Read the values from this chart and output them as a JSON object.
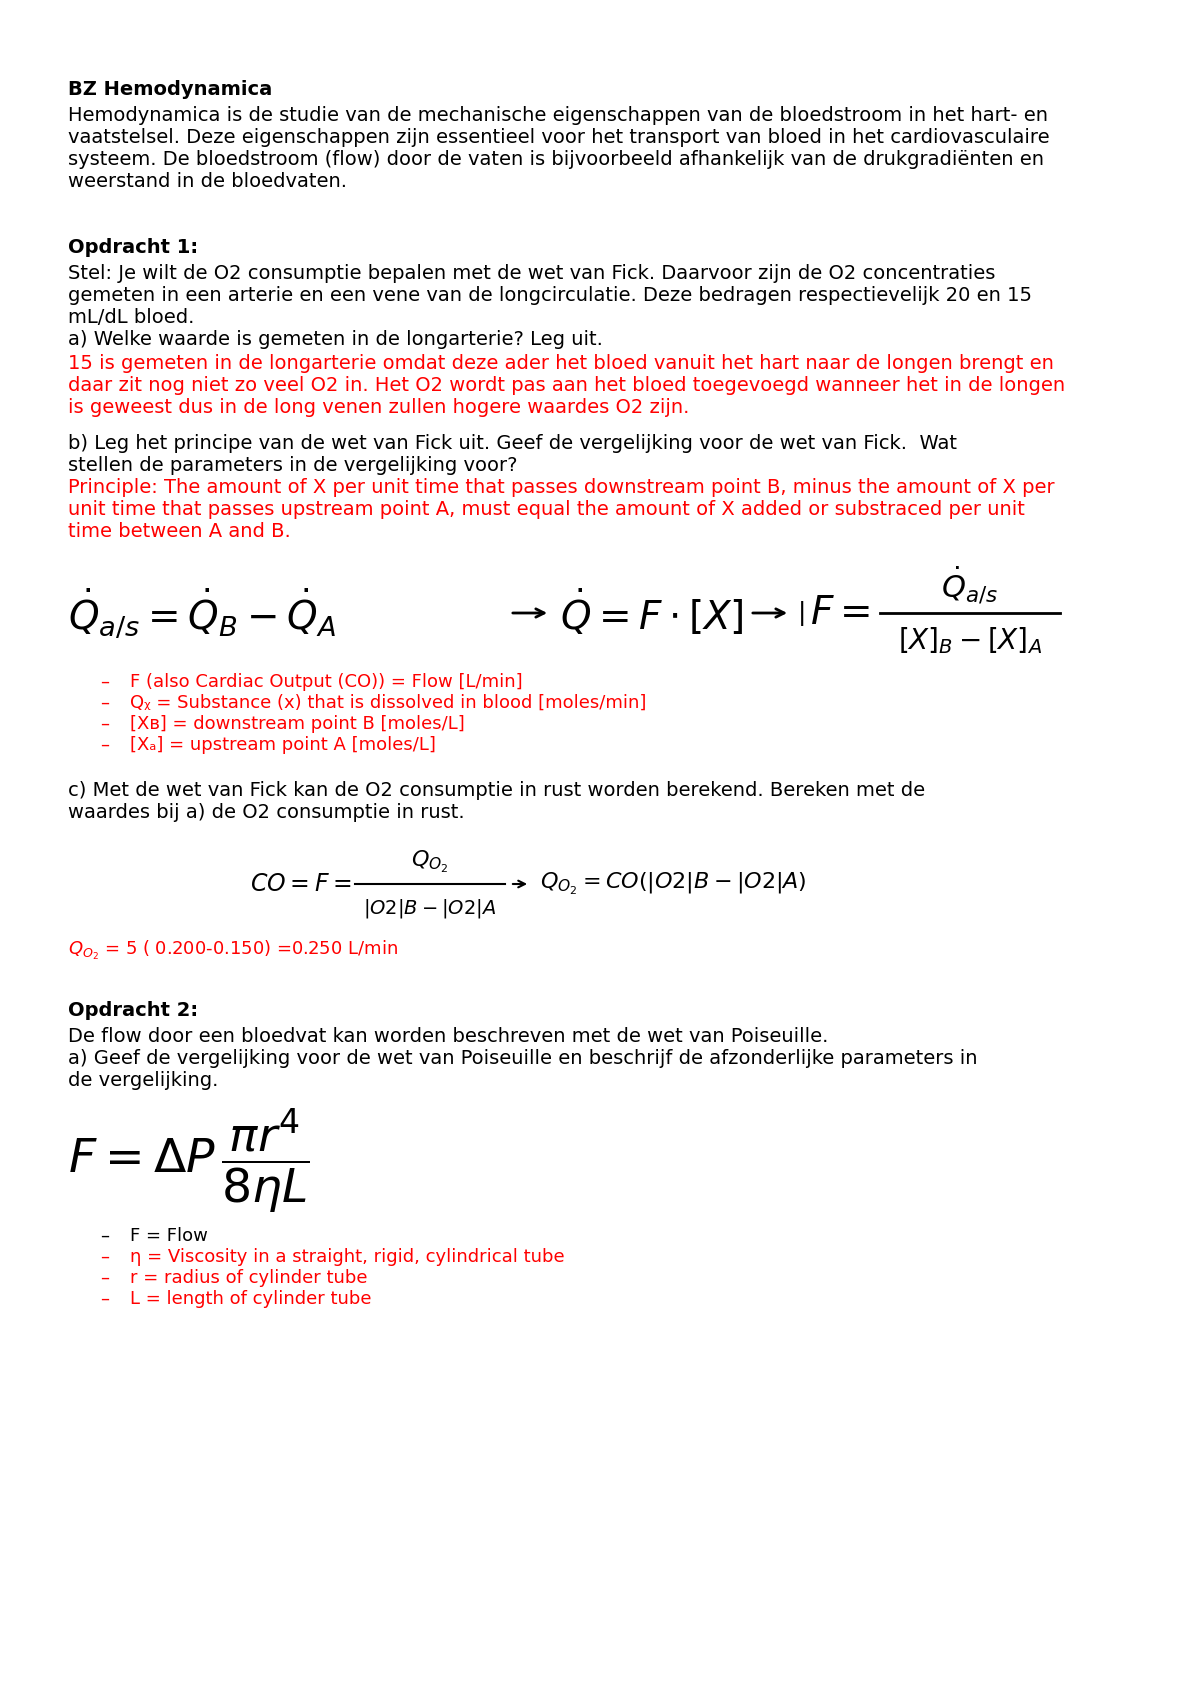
{
  "bg_color": "#ffffff",
  "title": "BZ Hemodynamica",
  "intro_lines": [
    "Hemodynamica is de studie van de mechanische eigenschappen van de bloedstroom in het hart- en",
    "vaatstelsel. Deze eigenschappen zijn essentieel voor het transport van bloed in het cardiovasculaire",
    "systeem. De bloedstroom (flow) door de vaten is bijvoorbeeld afhankelijk van de drukgradiënten en",
    "weerstand in de bloedvaten."
  ],
  "opdracht1_title": "Opdracht 1:",
  "opdracht1_intro_lines": [
    "Stel: Je wilt de O2 consumptie bepalen met de wet van Fick. Daarvoor zijn de O2 concentraties",
    "gemeten in een arterie en een vene van de longcirculatie. Deze bedragen respectievelijk 20 en 15",
    "mL/dL bloed."
  ],
  "opdracht1a_q": "a) Welke waarde is gemeten in de longarterie? Leg uit.",
  "opdracht1a_ans_lines": [
    "15 is gemeten in de longarterie omdat deze ader het bloed vanuit het hart naar de longen brengt en",
    "daar zit nog niet zo veel O2 in. Het O2 wordt pas aan het bloed toegevoegd wanneer het in de longen",
    "is geweest dus in de long venen zullen hogere waardes O2 zijn."
  ],
  "opdracht1b_q_lines": [
    "b) Leg het principe van de wet van Fick uit. Geef de vergelijking voor de wet van Fick.  Wat",
    "stellen de parameters in de vergelijking voor?"
  ],
  "opdracht1b_ans_lines": [
    "Principle: The amount of X per unit time that passes downstream point B, minus the amount of X per",
    "unit time that passes upstream point A, must equal the amount of X added or substraced per unit",
    "time between A and B."
  ],
  "bullet1": "F (also Cardiac Output (CO)) = Flow [L/min]",
  "bullet2": "Qᵪ = Substance (x) that is dissolved in blood [moles/min]",
  "bullet3": "[Xʙ] = downstream point B [moles/L]",
  "bullet4": "[Xₐ] = upstream point A [moles/L]",
  "opdracht1c_q_lines": [
    "c) Met de wet van Fick kan de O2 consumptie in rust worden berekend. Bereken met de",
    "waardes bij a) de O2 consumptie in rust."
  ],
  "opdracht2_title": "Opdracht 2:",
  "opdracht2_intro_lines": [
    "De flow door een bloedvat kan worden beschreven met de wet van Poiseuille.",
    "a) Geef de vergelijking voor de wet van Poiseuille en beschrijf de afzonderlijke parameters in",
    "de vergelijking."
  ],
  "bullet2_1": "F = Flow",
  "bullet2_2": "η = Viscosity in a straight, rigid, cylindrical tube",
  "bullet2_3": "r = radius of cylinder tube",
  "bullet2_4": "L = length of cylinder tube"
}
